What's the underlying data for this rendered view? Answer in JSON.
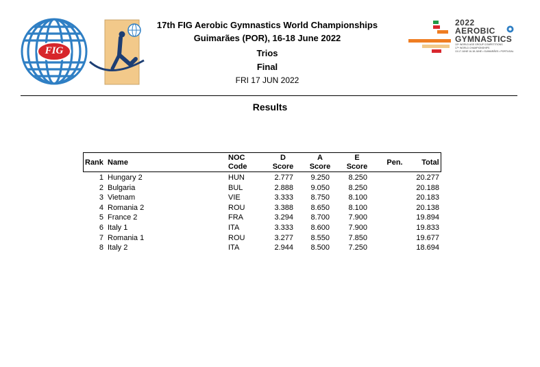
{
  "header": {
    "title": "17th FIG Aerobic Gymnastics World Championships",
    "location": "Guimarães (POR), 16-18 June 2022",
    "category": "Trios",
    "phase": "Final",
    "date": "FRI 17 JUN 2022"
  },
  "fig_logo": {
    "text": "FIG"
  },
  "event_logo": {
    "year": "2022",
    "line1": "AEROBIC",
    "line2": "GYMNASTICS",
    "small1": "10ᵗʰ WORLD AGE GROUP COMPETITIONS",
    "small2": "17ᵗʰ WORLD CHAMPIONSHIPS",
    "small3": "13-17.JUNE 16-18.JUNE • GUIMARÃES • PORTUGAL"
  },
  "section_title": "Results",
  "table": {
    "headers": {
      "rank": "Rank",
      "name": "Name",
      "noc_1": "NOC",
      "noc_2": "Code",
      "d_1": "D",
      "d_2": "Score",
      "a_1": "A",
      "a_2": "Score",
      "e_1": "E",
      "e_2": "Score",
      "pen": "Pen.",
      "total": "Total"
    },
    "rows": [
      {
        "rank": "1",
        "name": "Hungary 2",
        "noc": "HUN",
        "d": "2.777",
        "a": "9.250",
        "e": "8.250",
        "pen": "",
        "total": "20.277"
      },
      {
        "rank": "2",
        "name": "Bulgaria",
        "noc": "BUL",
        "d": "2.888",
        "a": "9.050",
        "e": "8.250",
        "pen": "",
        "total": "20.188"
      },
      {
        "rank": "3",
        "name": "Vietnam",
        "noc": "VIE",
        "d": "3.333",
        "a": "8.750",
        "e": "8.100",
        "pen": "",
        "total": "20.183"
      },
      {
        "rank": "4",
        "name": "Romania 2",
        "noc": "ROU",
        "d": "3.388",
        "a": "8.650",
        "e": "8.100",
        "pen": "",
        "total": "20.138"
      },
      {
        "rank": "5",
        "name": "France 2",
        "noc": "FRA",
        "d": "3.294",
        "a": "8.700",
        "e": "7.900",
        "pen": "",
        "total": "19.894"
      },
      {
        "rank": "6",
        "name": "Italy 1",
        "noc": "ITA",
        "d": "3.333",
        "a": "8.600",
        "e": "7.900",
        "pen": "",
        "total": "19.833"
      },
      {
        "rank": "7",
        "name": "Romania 1",
        "noc": "ROU",
        "d": "3.277",
        "a": "8.550",
        "e": "7.850",
        "pen": "",
        "total": "19.677"
      },
      {
        "rank": "8",
        "name": "Italy 2",
        "noc": "ITA",
        "d": "2.944",
        "a": "8.500",
        "e": "7.250",
        "pen": "",
        "total": "18.694"
      }
    ]
  },
  "colors": {
    "fig_blue": "#2f7fc4",
    "fig_red": "#d7262b",
    "logo_green": "#1f9a47",
    "logo_orange": "#ef7d22",
    "logo_red": "#d9282f",
    "logo_tan": "#f2c98a"
  }
}
